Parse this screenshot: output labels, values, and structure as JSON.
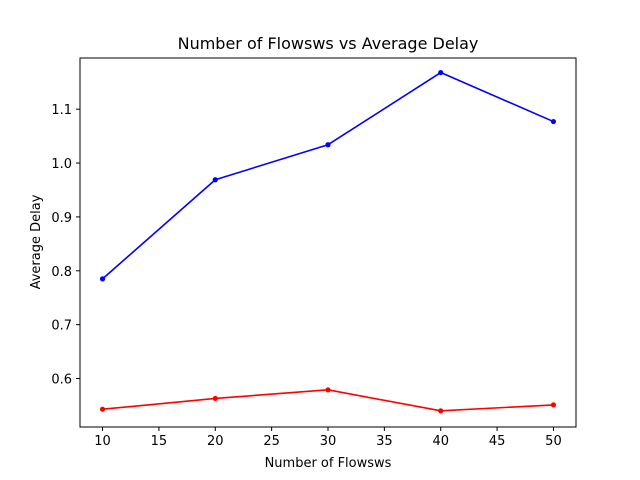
{
  "chart_data": {
    "type": "line",
    "title": "Number of Flowsws vs Average Delay",
    "xlabel": "Number of Flowsws",
    "ylabel": "Average Delay",
    "x": [
      10,
      20,
      30,
      40,
      50
    ],
    "xlim": [
      8,
      52
    ],
    "ylim": [
      0.51,
      1.195
    ],
    "xticks": [
      10,
      15,
      20,
      25,
      30,
      35,
      40,
      45,
      50
    ],
    "yticks": [
      0.6,
      0.7,
      0.8,
      0.9,
      1.0,
      1.1
    ],
    "xtick_labels": [
      "10",
      "15",
      "20",
      "25",
      "30",
      "35",
      "40",
      "45",
      "50"
    ],
    "ytick_labels": [
      "0.6",
      "0.7",
      "0.8",
      "0.9",
      "1.0",
      "1.1"
    ],
    "grid": false,
    "series": [
      {
        "color": "#0000ff",
        "values": [
          0.785,
          0.969,
          1.034,
          1.168,
          1.077
        ]
      },
      {
        "color": "#ff0000",
        "values": [
          0.543,
          0.563,
          0.579,
          0.54,
          0.551
        ]
      }
    ]
  }
}
